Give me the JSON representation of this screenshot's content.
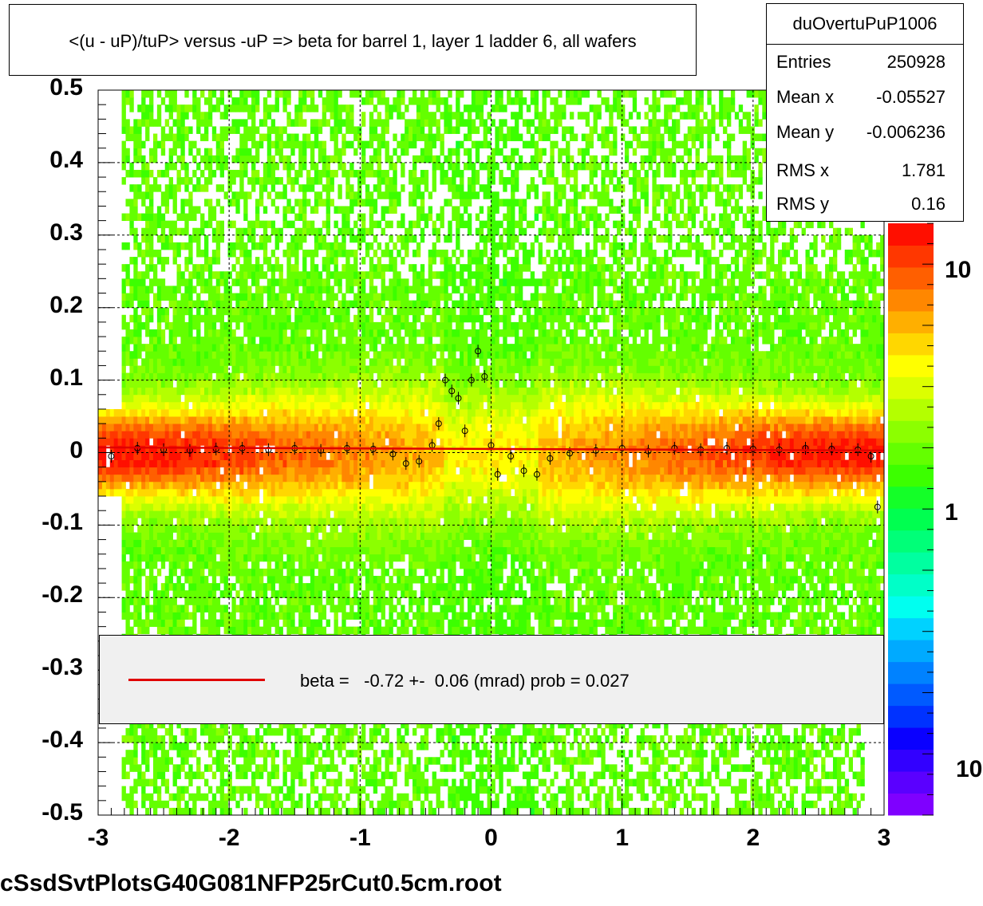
{
  "title": "<(u - uP)/tuP> versus  -uP => beta for barrel 1, layer 1 ladder 6, all wafers",
  "stats": {
    "name": "duOvertuPuP1006",
    "rows": [
      {
        "key": "Entries",
        "value": "250928"
      },
      {
        "key": "Mean x",
        "value": "-0.05527"
      },
      {
        "key": "Mean y",
        "value": "-0.006236"
      },
      {
        "key": "RMS x",
        "value": "1.781"
      },
      {
        "key": "RMS y",
        "value": "0.16"
      }
    ]
  },
  "legend": {
    "text": "beta =   -0.72 +-  0.06 (mrad) prob = 0.027",
    "line_color": "#e00000"
  },
  "footer": "cSsdSvtPlotsG40G081NFP25rCut0.5cm.root",
  "colors": {
    "fit_line": "#e00000",
    "palette": [
      "#7f00ff",
      "#5a00ff",
      "#3200ff",
      "#0a00ff",
      "#0032ff",
      "#005aff",
      "#0082ff",
      "#00aaff",
      "#00d2ff",
      "#00fff0",
      "#00ffc8",
      "#00ffa0",
      "#00ff78",
      "#00ff50",
      "#14ff28",
      "#3cff00",
      "#64ff00",
      "#8cff00",
      "#b4ff00",
      "#dcff00",
      "#ffff00",
      "#ffd700",
      "#ffaf00",
      "#ff8700",
      "#ff5f00",
      "#ff3700",
      "#ff0f00"
    ]
  },
  "chart_data": {
    "type": "heatmap",
    "title": "<(u - uP)/tuP> versus  -uP => beta for barrel 1, layer 1 ladder 6, all wafers",
    "xlabel": "",
    "ylabel": "",
    "xlim": [
      -3,
      3
    ],
    "ylim": [
      -0.5,
      0.5
    ],
    "x_ticks": [
      "-3",
      "-2",
      "-1",
      "0",
      "1",
      "2",
      "3"
    ],
    "y_ticks": [
      "0.5",
      "0.4",
      "0.3",
      "0.2",
      "0.1",
      "0",
      "-0.1",
      "-0.2",
      "-0.3",
      "-0.4",
      "-0.5"
    ],
    "z_scale": "log",
    "z_tick_labels": [
      "10",
      "1",
      "10"
    ],
    "grid": true,
    "fit": {
      "slope_mrad": -0.72,
      "error_mrad": 0.06,
      "prob": 0.027,
      "y_at_0": 0.005
    },
    "profile_points": [
      {
        "x": -2.9,
        "y": -0.005
      },
      {
        "x": -2.7,
        "y": 0.006
      },
      {
        "x": -2.5,
        "y": 0.004
      },
      {
        "x": -2.3,
        "y": 0.003
      },
      {
        "x": -2.1,
        "y": 0.005
      },
      {
        "x": -1.9,
        "y": 0.006
      },
      {
        "x": -1.7,
        "y": 0.004
      },
      {
        "x": -1.5,
        "y": 0.006
      },
      {
        "x": -1.3,
        "y": 0.003
      },
      {
        "x": -1.1,
        "y": 0.006
      },
      {
        "x": -0.9,
        "y": 0.005
      },
      {
        "x": -0.75,
        "y": -0.002
      },
      {
        "x": -0.65,
        "y": -0.015
      },
      {
        "x": -0.55,
        "y": -0.012
      },
      {
        "x": -0.45,
        "y": 0.01
      },
      {
        "x": -0.4,
        "y": 0.04
      },
      {
        "x": -0.35,
        "y": 0.1
      },
      {
        "x": -0.3,
        "y": 0.085
      },
      {
        "x": -0.25,
        "y": 0.075
      },
      {
        "x": -0.2,
        "y": 0.03
      },
      {
        "x": -0.15,
        "y": 0.1
      },
      {
        "x": -0.1,
        "y": 0.14
      },
      {
        "x": -0.05,
        "y": 0.105
      },
      {
        "x": 0.0,
        "y": 0.01
      },
      {
        "x": 0.05,
        "y": -0.03
      },
      {
        "x": 0.15,
        "y": -0.005
      },
      {
        "x": 0.25,
        "y": -0.025
      },
      {
        "x": 0.35,
        "y": -0.03
      },
      {
        "x": 0.45,
        "y": -0.008
      },
      {
        "x": 0.6,
        "y": -0.001
      },
      {
        "x": 0.8,
        "y": 0.003
      },
      {
        "x": 1.0,
        "y": 0.006
      },
      {
        "x": 1.2,
        "y": 0.002
      },
      {
        "x": 1.4,
        "y": 0.006
      },
      {
        "x": 1.6,
        "y": 0.004
      },
      {
        "x": 1.8,
        "y": 0.006
      },
      {
        "x": 2.0,
        "y": 0.005
      },
      {
        "x": 2.2,
        "y": 0.004
      },
      {
        "x": 2.4,
        "y": 0.006
      },
      {
        "x": 2.6,
        "y": 0.005
      },
      {
        "x": 2.8,
        "y": 0.004
      },
      {
        "x": 2.9,
        "y": -0.005
      },
      {
        "x": 2.95,
        "y": -0.075
      }
    ]
  }
}
